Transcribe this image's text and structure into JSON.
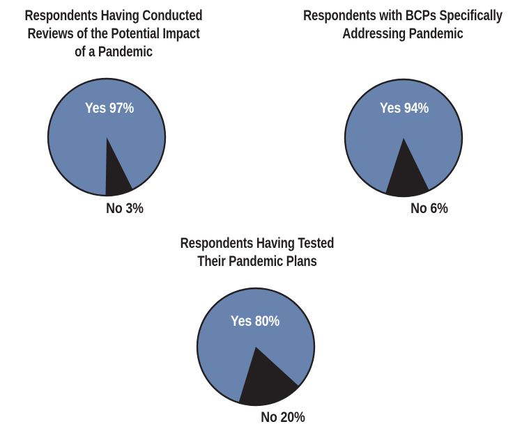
{
  "figure": {
    "description": "Three pie charts of survey responses about pandemic preparedness",
    "response_options": [
      "Yes",
      "No"
    ]
  },
  "colors": {
    "yes_slice": "#6884AE",
    "no_slice": "#231F20",
    "outline": "#231F20",
    "title_text": "#231F20",
    "yes_label_text": "#FFFFFF",
    "no_label_text": "#231F20",
    "background": "#FFFFFF"
  },
  "chart_data": [
    {
      "type": "pie",
      "title": "Respondents Having Conducted\nReviews of the Potential Impact\nof a Pandemic",
      "categories": [
        "Yes",
        "No"
      ],
      "values": [
        97,
        3
      ],
      "labels": [
        "Yes 97%",
        "No 3%"
      ],
      "legend": "none",
      "label_layout": "Yes label inside slice upper area, No label below pie",
      "no_wedge_deg": {
        "from": -1,
        "to": 26.5
      }
    },
    {
      "type": "pie",
      "title": "Respondents with BCPs Specifically\nAddressing Pandemic",
      "categories": [
        "Yes",
        "No"
      ],
      "values": [
        94,
        6
      ],
      "labels": [
        "Yes 94%",
        "No 6%"
      ],
      "legend": "none",
      "label_layout": "Yes label inside slice upper area, No label below pie",
      "no_wedge_deg": {
        "from": -18,
        "to": 26
      }
    },
    {
      "type": "pie",
      "title": "Respondents Having Tested\nTheir Pandemic Plans",
      "categories": [
        "Yes",
        "No"
      ],
      "values": [
        80,
        20
      ],
      "labels": [
        "Yes 80%",
        "No 20%"
      ],
      "legend": "none",
      "label_layout": "Yes label inside slice upper area, No label below pie",
      "no_wedge_deg": {
        "from": -17,
        "to": 47.5
      }
    }
  ]
}
